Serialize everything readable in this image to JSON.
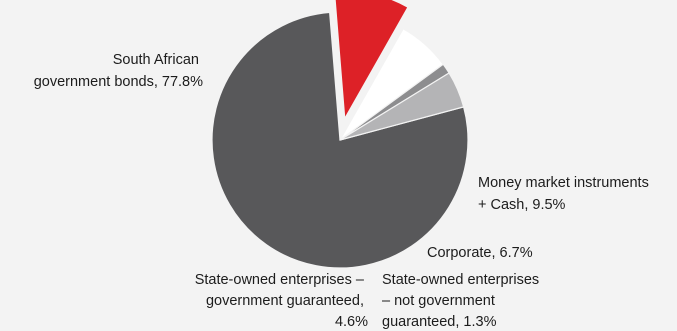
{
  "chart_data": {
    "type": "pie",
    "unit": "%",
    "slices": [
      {
        "label_lines": [
          "South African",
          "government bonds, 77.8%"
        ],
        "category": "South African government bonds",
        "value": 77.8,
        "color": "#58585a"
      },
      {
        "label_lines": [
          "Money market instruments",
          "+ Cash, 9.5%"
        ],
        "category": "Money market instruments + Cash",
        "value": 9.5,
        "color": "#dd2127",
        "exploded": true
      },
      {
        "label_lines": [
          "Corporate, 6.7%"
        ],
        "category": "Corporate",
        "value": 6.7,
        "color": "#ffffff"
      },
      {
        "label_lines": [
          "State-owned enterprises",
          "– not government",
          "guaranteed, 1.3%"
        ],
        "category": "State-owned enterprises – not government guaranteed",
        "value": 1.3,
        "color": "#8d8d8f"
      },
      {
        "label_lines": [
          "State-owned enterprises –",
          "government guaranteed,",
          "4.6%"
        ],
        "category": "State-owned enterprises – government guaranteed",
        "value": 4.6,
        "color": "#b4b4b6"
      }
    ]
  }
}
